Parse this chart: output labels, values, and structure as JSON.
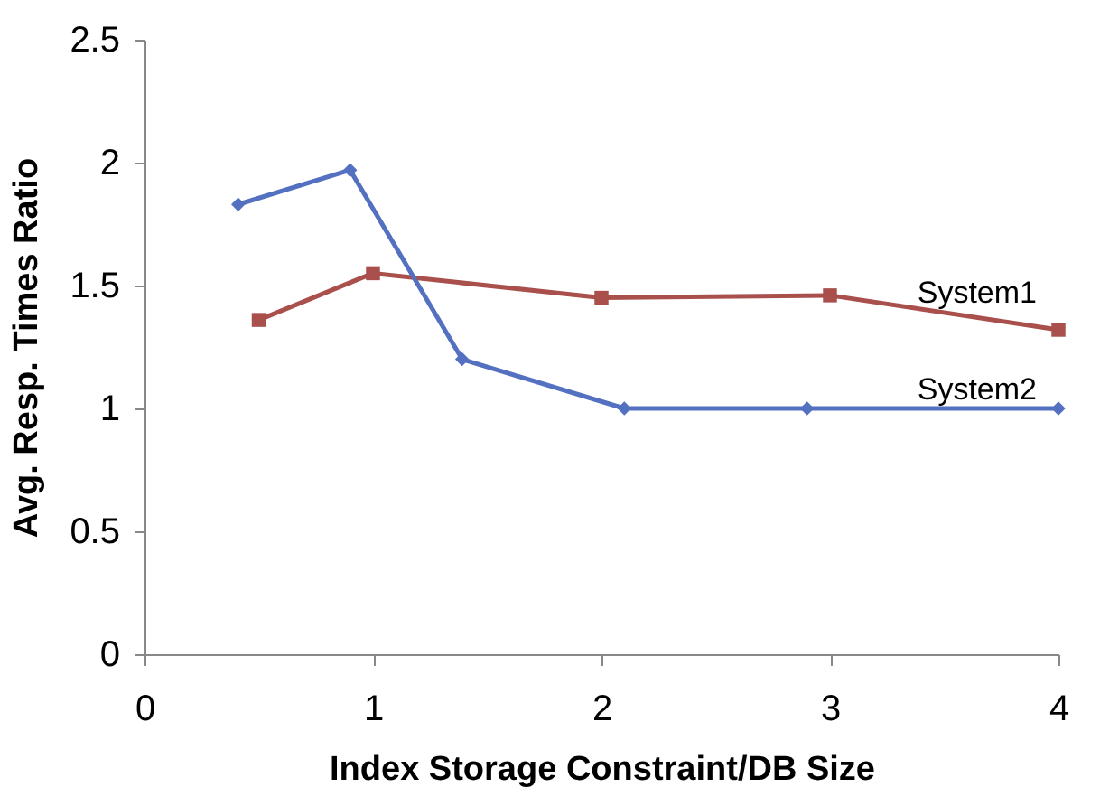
{
  "chart_data": {
    "type": "line",
    "xlabel": "Index Storage Constraint/DB Size",
    "ylabel": "Avg. Resp. Times Ratio",
    "xlim": [
      0,
      4
    ],
    "xticks": [
      0,
      1,
      2,
      3,
      4
    ],
    "ylim": [
      0,
      2.5
    ],
    "yticks": [
      0,
      0.5,
      1,
      1.5,
      2,
      2.5
    ],
    "grid": false,
    "legend": false,
    "series": [
      {
        "name": "System1",
        "color": "#a9504c",
        "marker": "square",
        "x": [
          0.5,
          1.0,
          2.0,
          3.0,
          4.0
        ],
        "values": [
          1.36,
          1.55,
          1.45,
          1.46,
          1.32
        ]
      },
      {
        "name": "System2",
        "color": "#5470c0",
        "marker": "diamond",
        "x": [
          0.41,
          0.9,
          1.39,
          2.1,
          2.9,
          4.0
        ],
        "values": [
          1.83,
          1.97,
          1.2,
          1.0,
          1.0,
          1.0
        ]
      }
    ]
  }
}
